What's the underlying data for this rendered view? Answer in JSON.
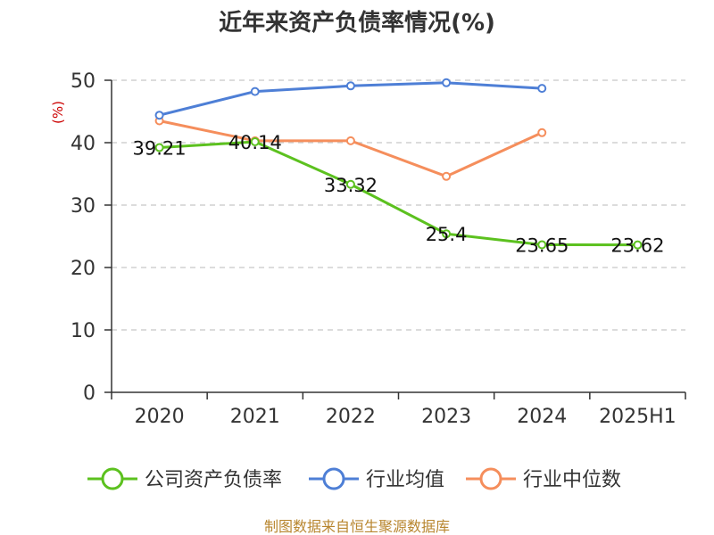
{
  "chart_data": {
    "type": "line",
    "title": "近年来资产负债率情况(%)",
    "ylabel": "(%)",
    "xlabel": "",
    "categories": [
      "2020",
      "2021",
      "2022",
      "2023",
      "2024",
      "2025H1"
    ],
    "ylim": [
      0,
      50
    ],
    "yticks": [
      0,
      10,
      20,
      30,
      40,
      50
    ],
    "grid": true,
    "legend_position": "bottom",
    "series": [
      {
        "name": "公司资产负债率",
        "color": "#5cc11f",
        "values": [
          39.21,
          40.14,
          33.32,
          25.4,
          23.65,
          23.62
        ],
        "labels": [
          "39.21",
          "40.14",
          "33.32",
          "25.4",
          "23.65",
          "23.62"
        ]
      },
      {
        "name": "行业均值",
        "color": "#4e7fd6",
        "values": [
          44.4,
          48.2,
          49.1,
          49.6,
          48.7,
          null
        ]
      },
      {
        "name": "行业中位数",
        "color": "#f58e5c",
        "values": [
          43.5,
          40.3,
          40.3,
          34.6,
          41.6,
          null
        ]
      }
    ]
  },
  "source": "制图数据来自恒生聚源数据库"
}
